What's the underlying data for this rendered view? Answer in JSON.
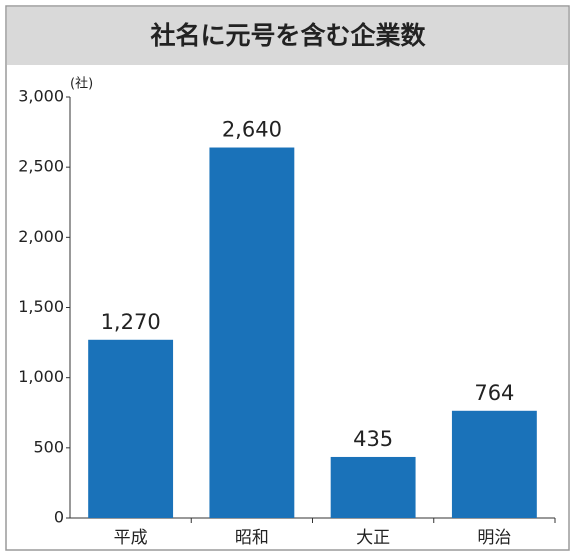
{
  "chart_data": {
    "type": "bar",
    "title": "社名に元号を含む企業数",
    "unit": "(社)",
    "categories": [
      "平成",
      "昭和",
      "大正",
      "明治"
    ],
    "values": [
      1270,
      2640,
      435,
      764
    ],
    "value_labels": [
      "1,270",
      "2,640",
      "435",
      "764"
    ],
    "color": "#1a72b9",
    "ylim": [
      0,
      3000
    ],
    "yticks": [
      0,
      500,
      {
        "value": 1000,
        "label": "1,000"
      },
      {
        "value": 1500,
        "label": "1,500"
      },
      {
        "value": 2000,
        "label": "2,000"
      },
      {
        "value": 2500,
        "label": "2,500"
      },
      {
        "value": 3000,
        "label": "3,000"
      }
    ],
    "grid": false
  }
}
